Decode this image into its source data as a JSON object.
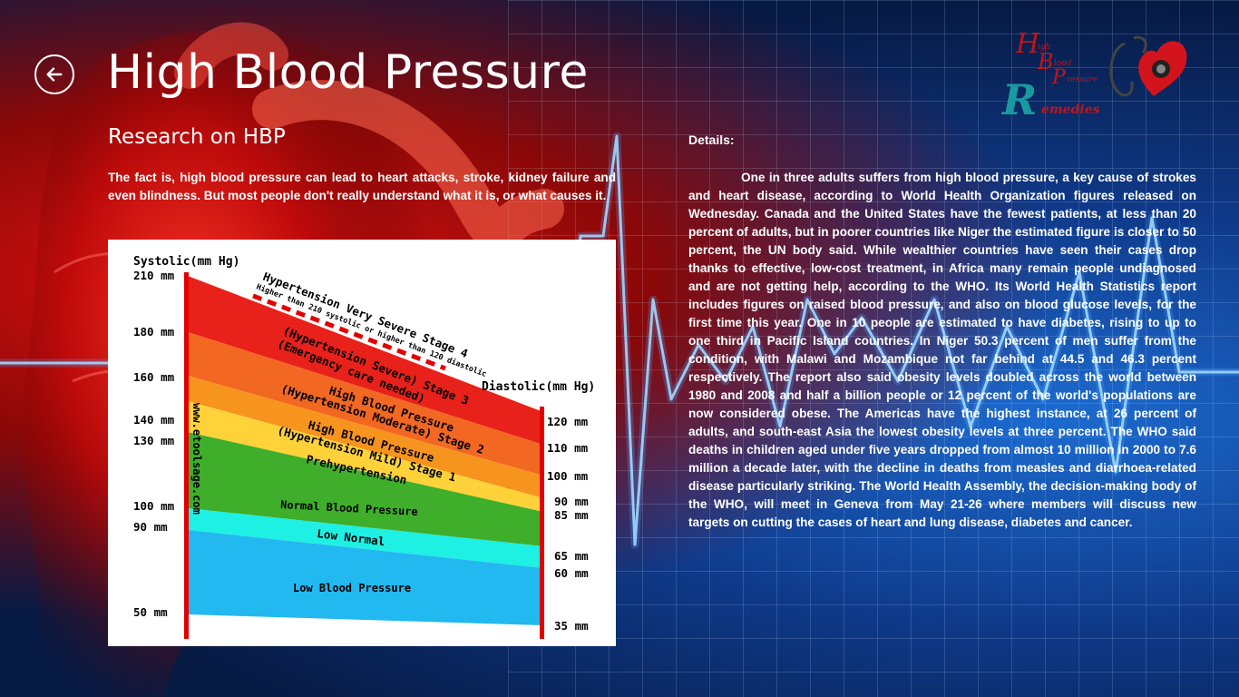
{
  "header": {
    "title": "High Blood Pressure",
    "back_icon": "back-arrow-icon"
  },
  "logo": {
    "icon": "hbp-remedies-logo-icon",
    "letters": [
      "H",
      "B",
      "P",
      "R"
    ],
    "words": [
      "igh",
      "lood",
      "ressure",
      "emedies"
    ]
  },
  "section": {
    "title": "Research on HBP",
    "intro": "The fact is, high blood pressure can lead to heart attacks, stroke, kidney failure and even blindness. But most people don't really understand what it is, or what causes it."
  },
  "chart": {
    "systolic_label": "Systolic(mm Hg)",
    "diastolic_label": "Diastolic(mm Hg)",
    "watermark": "www.etoolsage.com",
    "systolic_ticks": [
      "210 mm",
      "180 mm",
      "160 mm",
      "140 mm",
      "130 mm",
      "100 mm",
      "90 mm",
      "50 mm"
    ],
    "diastolic_ticks": [
      "120 mm",
      "110 mm",
      "100 mm",
      "90 mm",
      "85 mm",
      "65 mm",
      "60 mm",
      "35 mm"
    ],
    "bands": [
      {
        "label": "Hypertension Very Severe Stage 4",
        "sub": "Higher than 210 systolic or higher than 120 diastolic",
        "color": "#ffffff"
      },
      {
        "label": "(Hypertension Severe) Stage 3",
        "sub": "(Emergency care needed)",
        "color": "#e8211b"
      },
      {
        "label": "High Blood Pressure",
        "sub": "(Hypertension Moderate) Stage 2",
        "color": "#f26722"
      },
      {
        "label": "High Blood Pressure",
        "sub": "(Hypertension Mild) Stage 1",
        "color": "#f7941d"
      },
      {
        "label": "Prehypertension",
        "sub": "",
        "color": "#ffd23a"
      },
      {
        "label": "Normal Blood Pressure",
        "sub": "",
        "color": "#3fae2a"
      },
      {
        "label": "Low Normal",
        "sub": "",
        "color": "#1ef0e4"
      },
      {
        "label": "Low Blood Pressure",
        "sub": "",
        "color": "#22b8f0"
      }
    ]
  },
  "details": {
    "label": "Details:",
    "body": "One in three adults suffers from high blood pressure, a key cause of strokes and heart disease, according to World Health Organization figures released on Wednesday. Canada and the United States have the fewest patients, at less than 20 percent of adults, but in poorer countries like Niger the estimated figure is closer to 50 percent, the UN body said. While wealthier countries have seen their cases drop thanks to effective, low-cost treatment, in Africa many remain people undiagnosed and are not getting help, according to the WHO. Its World Health Statistics report includes figures on raised blood pressure, and also on blood glucose levels, for the first time this year. One in 10 people are estimated to have diabetes, rising to up to one third in Pacific Island countries. In Niger 50.3 percent of men suffer from the condition, with Malawi and Mozambique not far behind at 44.5 and 46.3 percent respectively. The report also said obesity levels doubled across the world between 1980 and 2008 and half a billion people or 12 percent of the world's populations are now considered obese. The Americas have the highest instance, at 26 percent of adults, and south-east Asia the lowest obesity levels at three percent. The WHO said deaths in children aged under five years dropped from almost 10 million in 2000 to 7.6 million a decade later, with the decline in deaths from measles and diarrhoea-related disease particularly striking. The World Health Assembly, the decision-making body of the WHO, will meet in Geneva from May 21-26 where members will discuss new targets on cutting the cases of heart and lung disease, diabetes and cancer."
  }
}
